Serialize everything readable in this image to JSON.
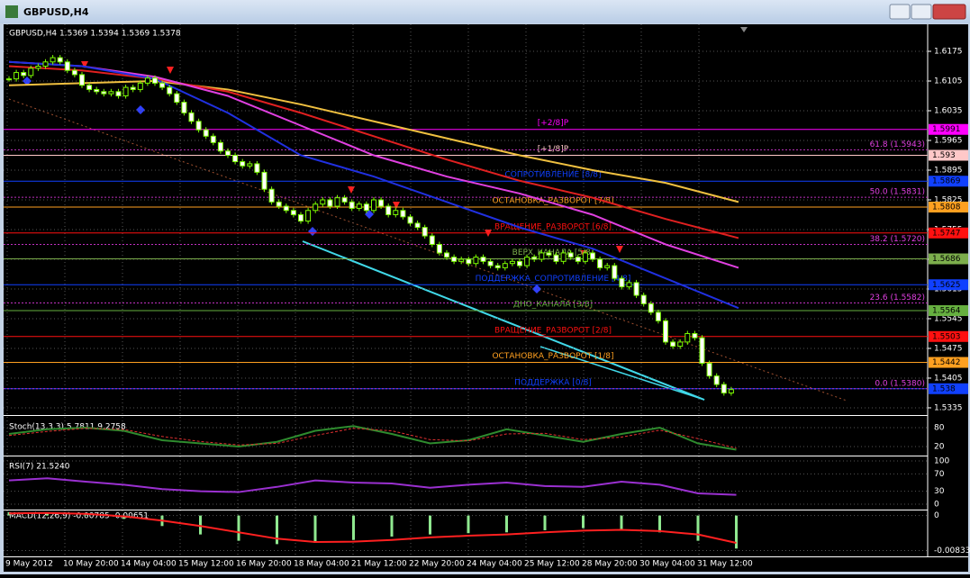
{
  "window": {
    "title": "GBPUSD,H4"
  },
  "chart": {
    "header": "GBPUSD,H4  1.5369 1.5394 1.5369 1.5378",
    "price_ticks": [
      1.6175,
      1.6105,
      1.6035,
      1.5965,
      1.5895,
      1.5825,
      1.5755,
      1.5685,
      1.5615,
      1.5545,
      1.5475,
      1.5405,
      1.5335
    ],
    "closes": [
      1.611,
      1.6125,
      1.6118,
      1.6135,
      1.614,
      1.615,
      1.616,
      1.615,
      1.613,
      1.612,
      1.6095,
      1.6085,
      1.608,
      1.6075,
      1.608,
      1.607,
      1.609,
      1.6085,
      1.61,
      1.6112,
      1.61,
      1.609,
      1.6075,
      1.6055,
      1.603,
      1.601,
      1.599,
      1.5975,
      1.596,
      1.594,
      1.593,
      1.5915,
      1.5905,
      1.591,
      1.589,
      1.585,
      1.582,
      1.581,
      1.58,
      1.579,
      1.5775,
      1.58,
      1.5815,
      1.5825,
      1.581,
      1.583,
      1.582,
      1.5805,
      1.5815,
      1.58,
      1.5825,
      1.581,
      1.579,
      1.58,
      1.5785,
      1.577,
      1.576,
      1.574,
      1.572,
      1.57,
      1.569,
      1.568,
      1.5685,
      1.5675,
      1.569,
      1.568,
      1.567,
      1.5665,
      1.5675,
      1.568,
      1.567,
      1.569,
      1.5685,
      1.57,
      1.5695,
      1.568,
      1.57,
      1.569,
      1.568,
      1.57,
      1.5685,
      1.5665,
      1.567,
      1.564,
      1.562,
      1.563,
      1.56,
      1.558,
      1.556,
      1.554,
      1.549,
      1.548,
      1.549,
      1.551,
      1.55,
      1.544,
      1.541,
      1.539,
      1.537,
      1.5378
    ],
    "moving_averages": [
      {
        "color": "#f0c040",
        "values": [
          1.6095,
          1.61,
          1.6105,
          1.6085,
          1.605,
          1.601,
          1.597,
          1.593,
          1.5895,
          1.5865,
          1.582
        ]
      },
      {
        "color": "#e02020",
        "values": [
          1.614,
          1.613,
          1.611,
          1.608,
          1.603,
          1.5975,
          1.592,
          1.587,
          1.583,
          1.578,
          1.5735
        ]
      },
      {
        "color": "#e040e0",
        "values": [
          1.615,
          1.614,
          1.6115,
          1.607,
          1.6,
          1.593,
          1.588,
          1.584,
          1.579,
          1.572,
          1.5665
        ]
      },
      {
        "color": "#2030e0",
        "values": [
          1.615,
          1.614,
          1.611,
          1.603,
          1.593,
          1.588,
          1.582,
          1.576,
          1.571,
          1.564,
          1.557
        ]
      }
    ],
    "levels": [
      {
        "label": "[+2/8]P",
        "value": 1.5991,
        "color": "#ff00ff"
      },
      {
        "label": "[+1/8]P",
        "value": 1.593,
        "color": "#ffc8c8"
      },
      {
        "label": "СОПРОТИВЛЕНИЕ [8/8]",
        "value": 1.5869,
        "color": "#1040ff"
      },
      {
        "label": "ОСТАНОВКА_РАЗВОРОТ [7/8]",
        "value": 1.5808,
        "color": "#ffa020"
      },
      {
        "label": "ВРАЩЕНИЕ_РАЗВОРОТ [6/8]",
        "value": 1.5747,
        "color": "#ff1010"
      },
      {
        "label": "ВЕРХ_КАНАЛА [5/8]",
        "value": 1.5686,
        "color": "#7cae4c"
      },
      {
        "label": "ПОДДЕРЖКА_СОПРОТИВЛЕНИЕ [4/8]",
        "value": 1.5625,
        "color": "#1040ff"
      },
      {
        "label": "ДНО_КАНАЛА [3/8]",
        "value": 1.5564,
        "color": "#66b040"
      },
      {
        "label": "ВРАЩЕНИЕ_РАЗВОРОТ [2/8]",
        "value": 1.5503,
        "color": "#ff1010"
      },
      {
        "label": "ОСТАНОВКА_РАЗВОРОТ [1/8]",
        "value": 1.5442,
        "color": "#ffa020"
      },
      {
        "label": "ПОДДЕРЖКА [0/8]",
        "value": 1.538,
        "color": "#1040ff"
      }
    ],
    "fibo": [
      {
        "label": "61.8 (1.5943)",
        "value": 1.5943
      },
      {
        "label": "50.0 (1.5831)",
        "value": 1.5831
      },
      {
        "label": "38.2 (1.5720)",
        "value": 1.572
      },
      {
        "label": "23.6 (1.5582)",
        "value": 1.5582
      },
      {
        "label": "0.0 (1.5380)",
        "value": 1.538
      }
    ],
    "time_labels": [
      "9 May 2012",
      "10 May 20:00",
      "14 May 04:00",
      "15 May 12:00",
      "16 May 20:00",
      "18 May 04:00",
      "21 May 12:00",
      "22 May 20:00",
      "24 May 04:00",
      "25 May 12:00",
      "28 May 20:00",
      "30 May 04:00",
      "31 May 12:00"
    ]
  },
  "stoch": {
    "name": "Stoch(13,3,3) 5.7811 9.2758",
    "ylim": [
      0,
      100
    ],
    "ticks": [
      80,
      20
    ],
    "main": [
      60,
      75,
      80,
      70,
      40,
      30,
      20,
      35,
      70,
      85,
      60,
      30,
      40,
      75,
      55,
      35,
      60,
      80,
      30,
      10
    ],
    "signal": [
      55,
      68,
      78,
      74,
      52,
      36,
      25,
      30,
      55,
      78,
      70,
      42,
      38,
      60,
      62,
      42,
      50,
      72,
      45,
      15
    ]
  },
  "rsi": {
    "name": "RSI(7) 21.5240",
    "ylim": [
      0,
      100
    ],
    "ticks": [
      100,
      70,
      30,
      0
    ],
    "values": [
      55,
      60,
      52,
      45,
      35,
      30,
      28,
      40,
      55,
      50,
      48,
      38,
      45,
      50,
      42,
      40,
      52,
      45,
      25,
      21.524
    ]
  },
  "macd": {
    "name": "MACD(12,26,9) -0.00785 -0.00651",
    "ylim": [
      -0.0095,
      0.0012
    ],
    "ticks": [
      0,
      -0.00833
    ],
    "main": [
      0.0008,
      0.0006,
      0.0002,
      -0.0008,
      -0.0025,
      -0.0045,
      -0.006,
      -0.0068,
      -0.0065,
      -0.0058,
      -0.005,
      -0.0045,
      -0.0042,
      -0.004,
      -0.0035,
      -0.003,
      -0.0032,
      -0.004,
      -0.006,
      -0.00785
    ],
    "signal": [
      0.0005,
      0.0006,
      0.0004,
      -0.0002,
      -0.0012,
      -0.0025,
      -0.004,
      -0.0055,
      -0.0063,
      -0.0062,
      -0.0058,
      -0.0052,
      -0.0048,
      -0.0045,
      -0.004,
      -0.0036,
      -0.0034,
      -0.0037,
      -0.0045,
      -0.00651
    ]
  }
}
